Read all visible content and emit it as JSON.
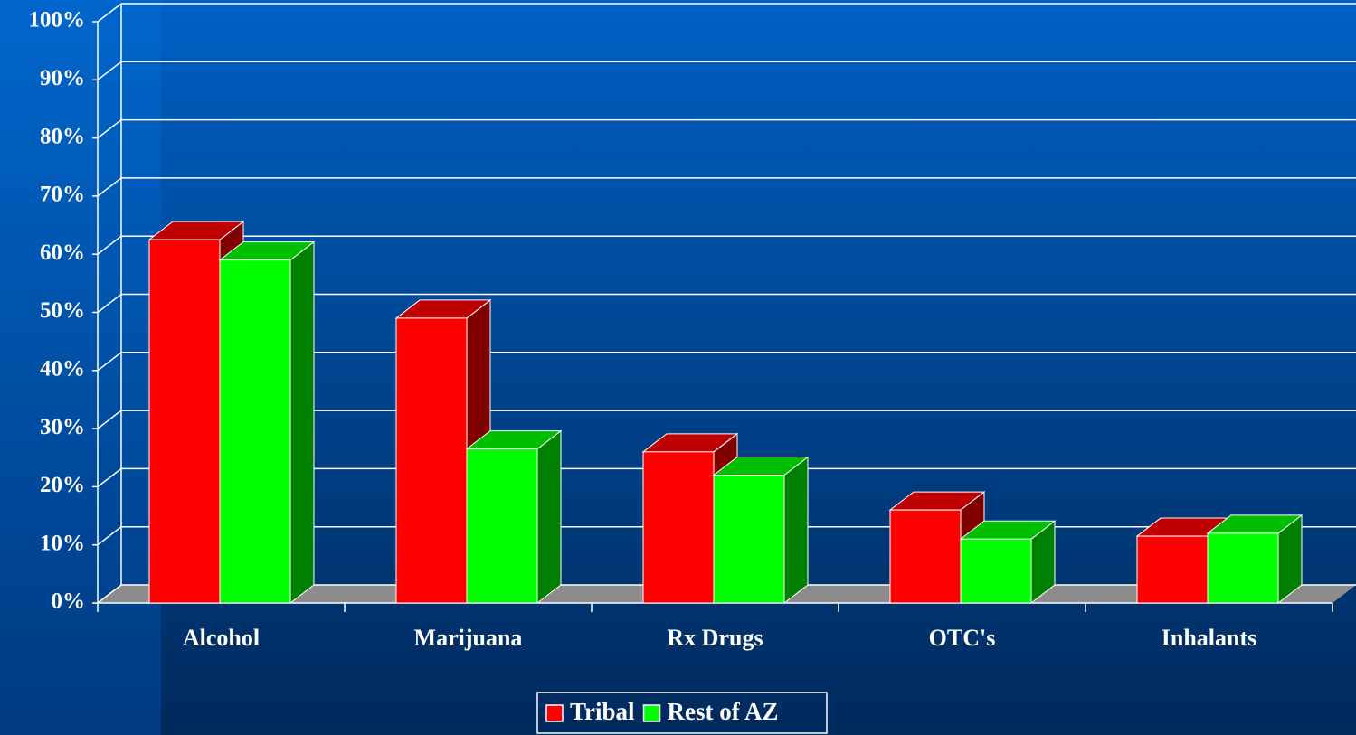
{
  "chart_data": {
    "type": "bar3d",
    "categories": [
      "Alcohol",
      "Marijuana",
      "Rx Drugs",
      "OTC's",
      "Inhalants"
    ],
    "series": [
      {
        "name": "Tribal",
        "color": "#ff0000",
        "values": [
          62.5,
          49,
          26,
          16,
          11.5
        ]
      },
      {
        "name": "Rest of AZ",
        "color": "#00ff00",
        "values": [
          59,
          26.5,
          22,
          11,
          12
        ]
      }
    ],
    "ylim": [
      0,
      100
    ],
    "yticks": [
      {
        "value": 0,
        "label": "0%"
      },
      {
        "value": 10,
        "label": "10%"
      },
      {
        "value": 20,
        "label": "20%"
      },
      {
        "value": 30,
        "label": "30%"
      },
      {
        "value": 40,
        "label": "40%"
      },
      {
        "value": 50,
        "label": "50%"
      },
      {
        "value": 60,
        "label": "60%"
      },
      {
        "value": 70,
        "label": "70%"
      },
      {
        "value": 80,
        "label": "80%"
      },
      {
        "value": 90,
        "label": "90%"
      },
      {
        "value": 100,
        "label": "100%"
      }
    ],
    "grid": true,
    "legend": "bottom"
  }
}
